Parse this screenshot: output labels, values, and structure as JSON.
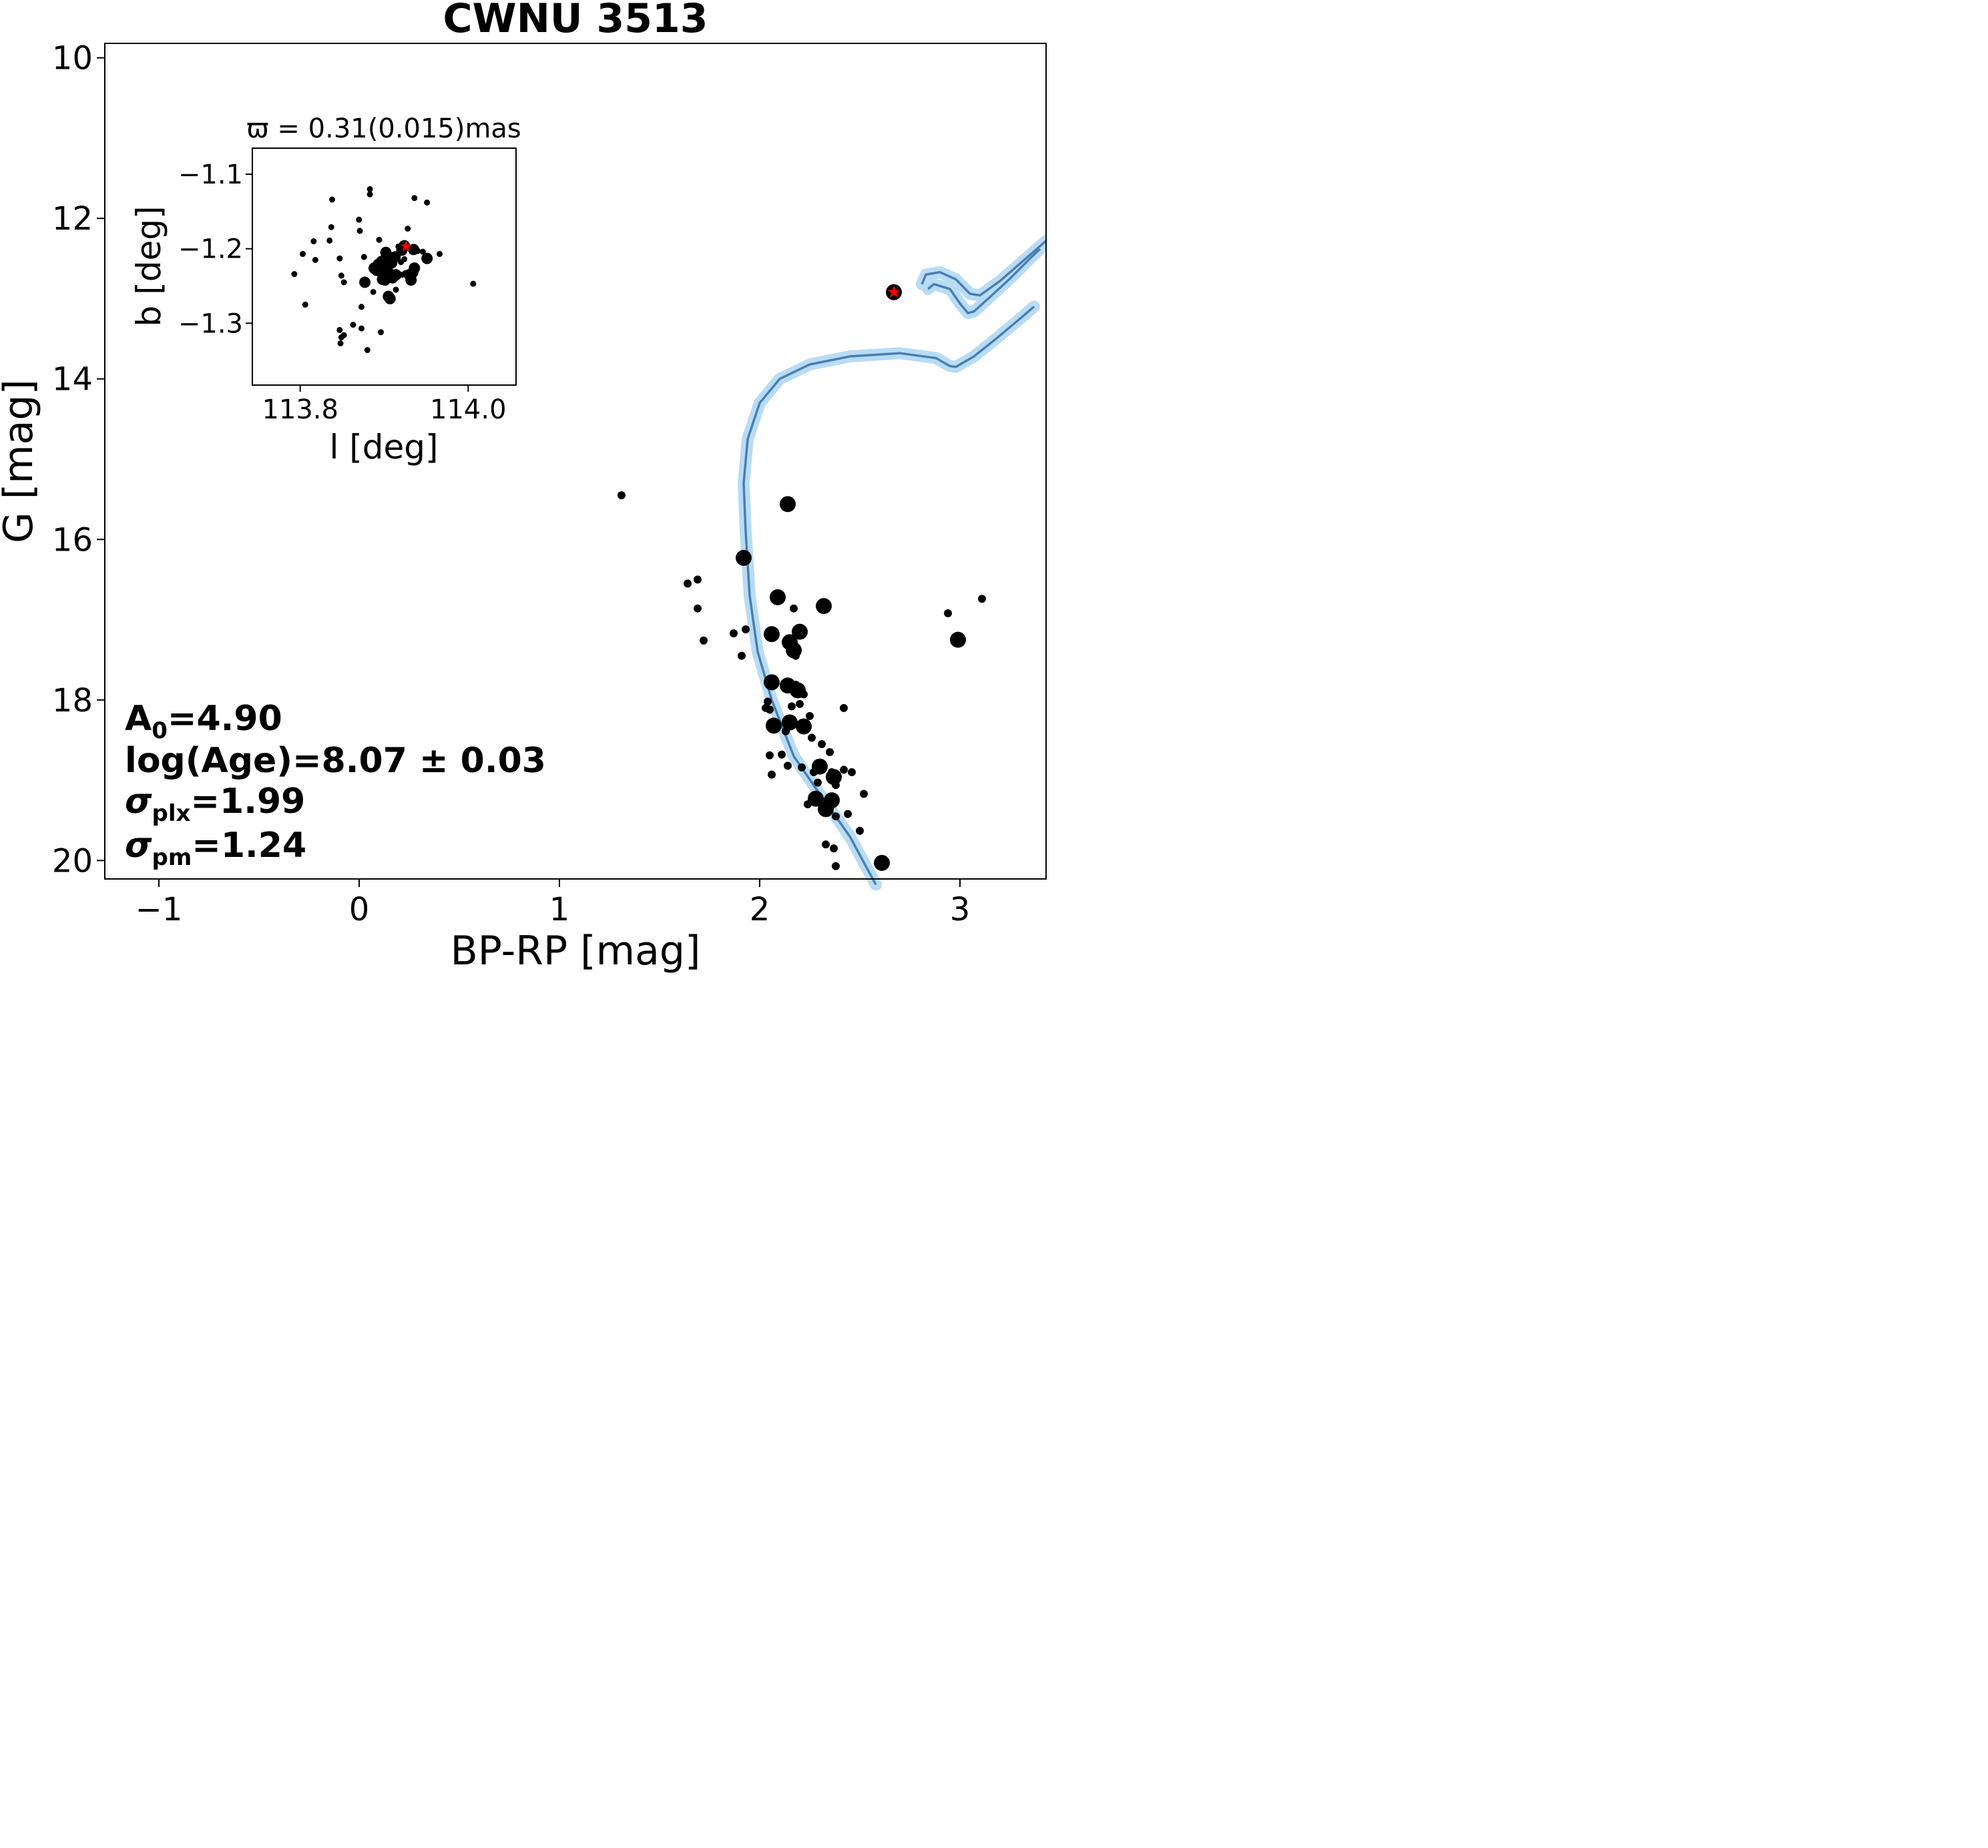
{
  "chart_data": [
    {
      "type": "scatter",
      "title": "CWNU 3513",
      "xlabel": "BP-RP [mag]",
      "ylabel": "G [mag]",
      "xlim": [
        -1.27,
        3.43
      ],
      "ylim": [
        20.23,
        9.82
      ],
      "y_inverted": true,
      "xticks": [
        -1,
        0,
        1,
        2,
        3
      ],
      "xtick_labels": [
        "−1",
        "0",
        "1",
        "2",
        "3"
      ],
      "yticks": [
        10,
        12,
        14,
        16,
        18,
        20
      ],
      "ytick_labels": [
        "10",
        "12",
        "14",
        "16",
        "18",
        "20"
      ],
      "grid": false,
      "annotations": {
        "a0": {
          "sym": "A",
          "sub": "0",
          "val": "=4.90"
        },
        "age": "log(Age)=8.07 ± 0.03",
        "splx": {
          "sym": "σ",
          "sub": "plx",
          "val": "=1.99"
        },
        "spm": {
          "sym": "σ",
          "sub": "pm",
          "val": "=1.24"
        }
      },
      "members_large": [
        [
          2.14,
          15.56
        ],
        [
          1.92,
          16.23
        ],
        [
          2.09,
          16.72
        ],
        [
          2.32,
          16.83
        ],
        [
          2.06,
          17.18
        ],
        [
          2.2,
          17.15
        ],
        [
          2.15,
          17.28
        ],
        [
          2.17,
          17.38
        ],
        [
          2.99,
          17.25
        ],
        [
          2.06,
          17.78
        ],
        [
          2.14,
          17.82
        ],
        [
          2.19,
          17.88
        ],
        [
          2.07,
          18.32
        ],
        [
          2.15,
          18.28
        ],
        [
          2.22,
          18.33
        ],
        [
          2.3,
          18.83
        ],
        [
          2.37,
          18.96
        ],
        [
          2.28,
          19.23
        ],
        [
          2.33,
          19.36
        ],
        [
          2.36,
          19.25
        ],
        [
          2.61,
          20.03
        ]
      ],
      "members_small": [
        [
          1.31,
          15.45
        ],
        [
          1.64,
          16.55
        ],
        [
          1.69,
          16.5
        ],
        [
          1.69,
          16.86
        ],
        [
          1.72,
          17.26
        ],
        [
          1.87,
          17.17
        ],
        [
          1.93,
          17.12
        ],
        [
          1.91,
          17.45
        ],
        [
          2.17,
          16.86
        ],
        [
          2.04,
          18.02
        ],
        [
          2.03,
          18.1
        ],
        [
          2.05,
          18.12
        ],
        [
          2.16,
          18.08
        ],
        [
          2.2,
          18.05
        ],
        [
          2.22,
          17.93
        ],
        [
          2.18,
          17.81
        ],
        [
          2.13,
          18.39
        ],
        [
          2.26,
          18.47
        ],
        [
          2.31,
          18.55
        ],
        [
          2.42,
          18.1
        ],
        [
          2.05,
          18.69
        ],
        [
          2.11,
          18.68
        ],
        [
          2.14,
          18.82
        ],
        [
          2.21,
          18.84
        ],
        [
          2.27,
          18.9
        ],
        [
          2.29,
          19.03
        ],
        [
          2.36,
          18.9
        ],
        [
          2.38,
          19.06
        ],
        [
          2.42,
          18.87
        ],
        [
          2.46,
          18.9
        ],
        [
          2.52,
          19.17
        ],
        [
          2.38,
          19.45
        ],
        [
          2.5,
          19.63
        ],
        [
          2.44,
          19.42
        ],
        [
          2.24,
          19.3
        ],
        [
          2.3,
          19.24
        ],
        [
          2.06,
          18.93
        ],
        [
          2.35,
          18.65
        ],
        [
          2.33,
          19.8
        ],
        [
          2.37,
          19.85
        ],
        [
          2.38,
          20.07
        ],
        [
          2.94,
          16.92
        ],
        [
          3.11,
          16.74
        ],
        [
          2.18,
          17.45
        ],
        [
          2.25,
          18.2
        ]
      ],
      "red_star": [
        2.67,
        12.92
      ],
      "isochrones": [
        [
          [
            2.58,
            20.3
          ],
          [
            2.45,
            19.7
          ],
          [
            2.28,
            19.1
          ],
          [
            2.17,
            18.7
          ],
          [
            2.06,
            18.0
          ],
          [
            1.99,
            17.4
          ],
          [
            1.95,
            16.7
          ],
          [
            1.93,
            15.9
          ],
          [
            1.92,
            15.3
          ],
          [
            1.94,
            14.75
          ],
          [
            2.0,
            14.3
          ],
          [
            2.1,
            14.0
          ],
          [
            2.25,
            13.82
          ],
          [
            2.45,
            13.72
          ],
          [
            2.7,
            13.68
          ],
          [
            2.88,
            13.74
          ],
          [
            2.95,
            13.84
          ],
          [
            2.98,
            13.85
          ],
          [
            3.07,
            13.72
          ],
          [
            3.18,
            13.5
          ],
          [
            3.3,
            13.25
          ],
          [
            3.37,
            13.1
          ]
        ],
        [
          [
            2.84,
            12.88
          ],
          [
            2.87,
            12.82
          ],
          [
            2.95,
            12.88
          ],
          [
            3.0,
            13.06
          ],
          [
            3.04,
            13.18
          ],
          [
            3.07,
            13.16
          ],
          [
            3.15,
            12.98
          ],
          [
            3.25,
            12.75
          ],
          [
            3.35,
            12.5
          ],
          [
            3.4,
            12.38
          ]
        ],
        [
          [
            2.81,
            12.82
          ],
          [
            2.83,
            12.7
          ],
          [
            2.9,
            12.67
          ],
          [
            2.98,
            12.76
          ],
          [
            3.05,
            12.94
          ],
          [
            3.1,
            12.96
          ],
          [
            3.2,
            12.78
          ],
          [
            3.32,
            12.52
          ],
          [
            3.43,
            12.28
          ]
        ]
      ]
    },
    {
      "type": "scatter",
      "title": "ϖ = 0.31(0.015)mas",
      "xlabel": "l [deg]",
      "ylabel": "b [deg]",
      "xlim": [
        113.743,
        114.057
      ],
      "ylim": [
        -1.383,
        -1.065
      ],
      "xticks": [
        113.8,
        114.0
      ],
      "xtick_labels": [
        "113.8",
        "114.0"
      ],
      "yticks": [
        -1.1,
        -1.2,
        -1.3
      ],
      "ytick_labels": [
        "−1.1",
        "−1.2",
        "−1.3"
      ],
      "grid": false,
      "points_large": [
        [
          113.921,
          -1.202
        ],
        [
          113.935,
          -1.201
        ],
        [
          113.902,
          -1.205
        ],
        [
          113.913,
          -1.211
        ],
        [
          113.904,
          -1.214
        ],
        [
          113.897,
          -1.217
        ],
        [
          113.909,
          -1.219
        ],
        [
          113.893,
          -1.221
        ],
        [
          113.903,
          -1.224
        ],
        [
          113.899,
          -1.226
        ],
        [
          113.888,
          -1.226
        ],
        [
          113.891,
          -1.229
        ],
        [
          113.897,
          -1.232
        ],
        [
          113.906,
          -1.233
        ],
        [
          113.914,
          -1.235
        ],
        [
          113.9,
          -1.237
        ],
        [
          113.898,
          -1.241
        ],
        [
          113.901,
          -1.242
        ],
        [
          113.91,
          -1.239
        ],
        [
          113.936,
          -1.226
        ],
        [
          113.934,
          -1.232
        ],
        [
          113.93,
          -1.235
        ],
        [
          113.932,
          -1.242
        ],
        [
          113.951,
          -1.213
        ],
        [
          113.877,
          -1.245
        ],
        [
          113.905,
          -1.264
        ],
        [
          113.907,
          -1.267
        ],
        [
          113.924,
          -1.196
        ]
      ],
      "points_small": [
        [
          113.883,
          -1.12
        ],
        [
          113.883,
          -1.127
        ],
        [
          113.936,
          -1.132
        ],
        [
          113.951,
          -1.138
        ],
        [
          113.838,
          -1.134
        ],
        [
          113.837,
          -1.171
        ],
        [
          113.87,
          -1.161
        ],
        [
          113.871,
          -1.176
        ],
        [
          113.928,
          -1.173
        ],
        [
          113.803,
          -1.207
        ],
        [
          113.816,
          -1.19
        ],
        [
          113.835,
          -1.189
        ],
        [
          113.793,
          -1.234
        ],
        [
          113.818,
          -1.215
        ],
        [
          113.847,
          -1.213
        ],
        [
          113.876,
          -1.211
        ],
        [
          113.894,
          -1.188
        ],
        [
          113.917,
          -1.197
        ],
        [
          113.94,
          -1.203
        ],
        [
          113.924,
          -1.214
        ],
        [
          113.946,
          -1.204
        ],
        [
          113.966,
          -1.207
        ],
        [
          113.887,
          -1.258
        ],
        [
          113.914,
          -1.255
        ],
        [
          113.925,
          -1.233
        ],
        [
          113.921,
          -1.235
        ],
        [
          113.849,
          -1.236
        ],
        [
          113.852,
          -1.245
        ],
        [
          113.806,
          -1.275
        ],
        [
          113.873,
          -1.278
        ],
        [
          113.863,
          -1.302
        ],
        [
          113.873,
          -1.307
        ],
        [
          113.896,
          -1.312
        ],
        [
          113.847,
          -1.309
        ],
        [
          113.852,
          -1.316
        ],
        [
          113.849,
          -1.319
        ],
        [
          113.848,
          -1.327
        ],
        [
          113.88,
          -1.336
        ],
        [
          114.006,
          -1.247
        ],
        [
          113.92,
          -1.218
        ]
      ],
      "red_star": [
        113.926,
        -1.197
      ]
    }
  ]
}
